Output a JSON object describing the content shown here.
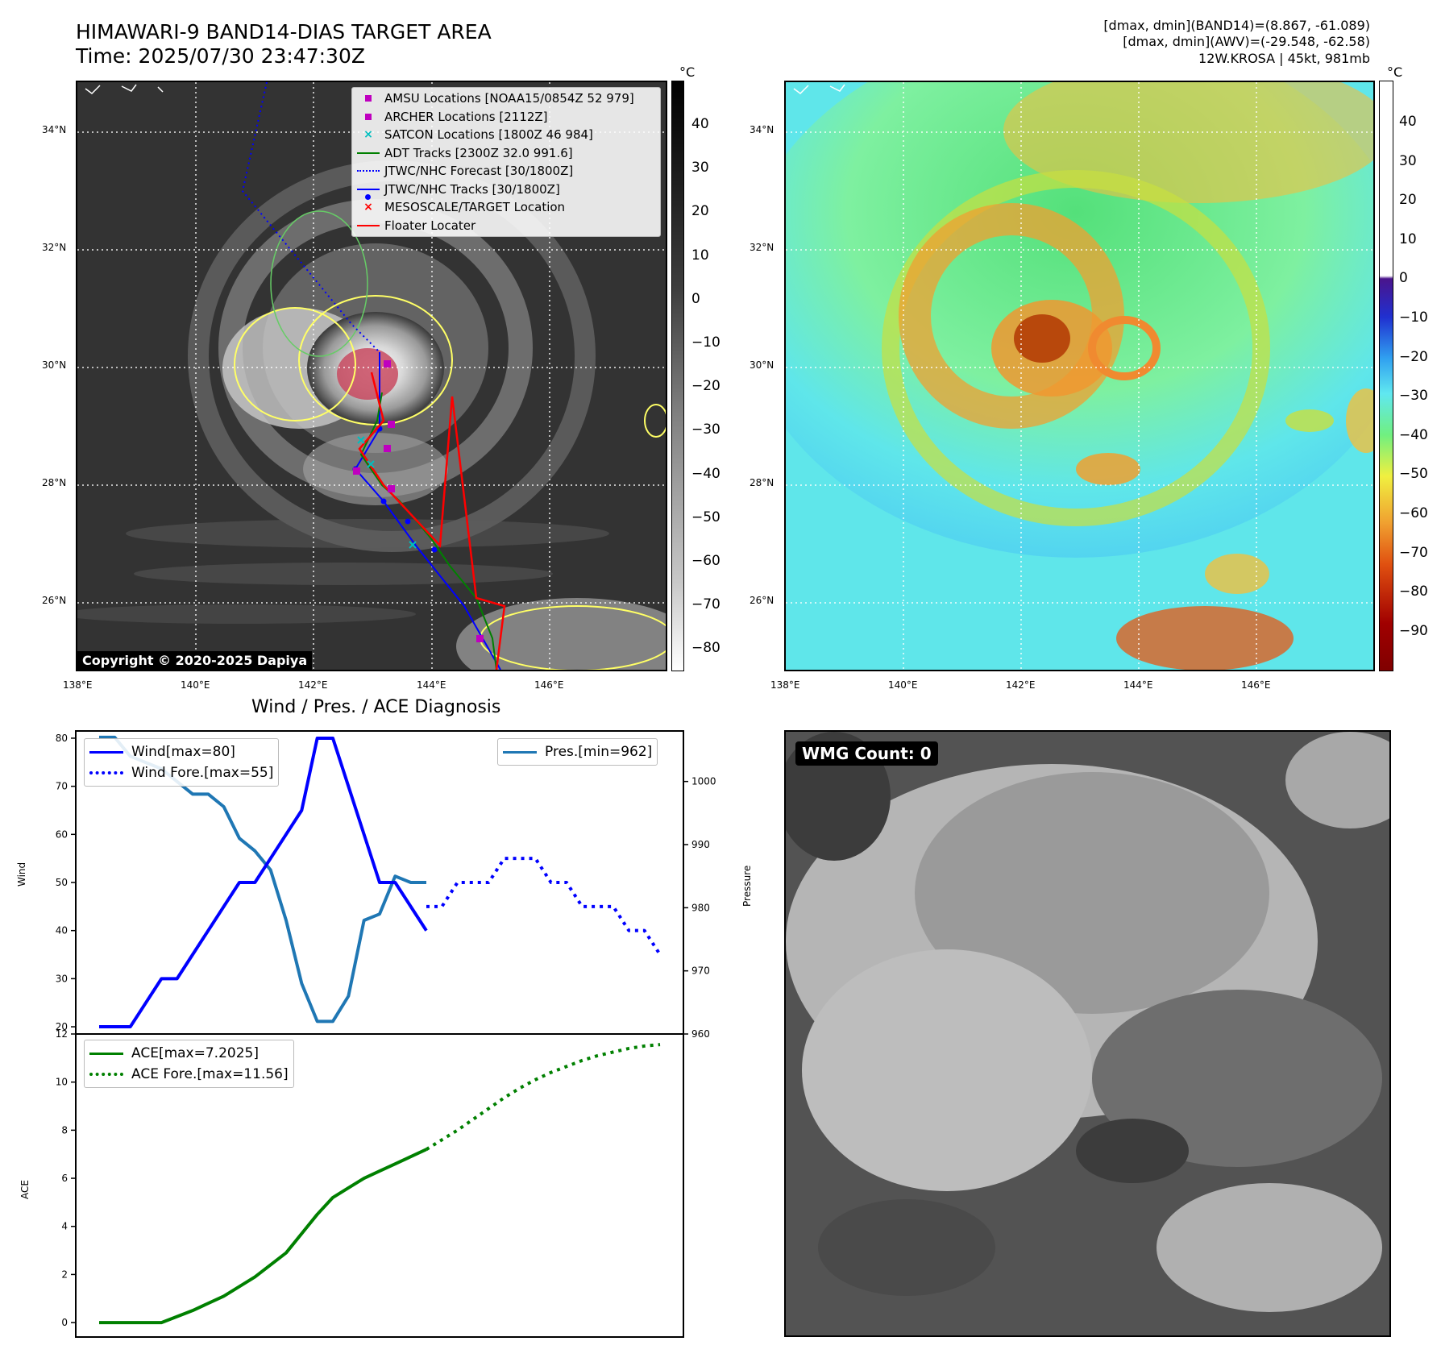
{
  "header": {
    "title_line1": "HIMAWARI-9 BAND14-DIAS TARGET AREA",
    "title_line2": "Time: 2025/07/30 23:47:30Z",
    "info_line1": "[dmax, dmin](BAND14)=(8.867, -61.089)",
    "info_line2": "[dmax, dmin](AWV)=(-29.548, -62.58)",
    "info_line3": "12W.KROSA | 45kt, 981mb"
  },
  "maps": {
    "lon_ticks": [
      "138°E",
      "140°E",
      "142°E",
      "144°E",
      "146°E"
    ],
    "lat_ticks": [
      "34°N",
      "32°N",
      "30°N",
      "28°N",
      "26°N"
    ],
    "colorbar_unit": "°C",
    "ir_colorbar_ticks": [
      "40",
      "30",
      "20",
      "10",
      "0",
      "−10",
      "−20",
      "−30",
      "−40",
      "−50",
      "−60",
      "−70",
      "−80"
    ],
    "awv_colorbar_ticks": [
      "40",
      "30",
      "20",
      "10",
      "0",
      "−10",
      "−20",
      "−30",
      "−40",
      "−50",
      "−60",
      "−70",
      "−80",
      "−90"
    ],
    "copyright": "Copyright © 2020-2025 Dapiya",
    "legend": [
      {
        "label": "AMSU Locations [NOAA15/0854Z 52 979]",
        "symbol": "square",
        "color": "#bf00bf"
      },
      {
        "label": "ARCHER Locations [2112Z]",
        "symbol": "square",
        "color": "#bf00bf"
      },
      {
        "label": "SATCON Locations [1800Z 46 984]",
        "symbol": "x",
        "color": "#00bfbf"
      },
      {
        "label": "ADT Tracks [2300Z 32.0 991.6]",
        "symbol": "line",
        "color": "#008000"
      },
      {
        "label": "JTWC/NHC Forecast [30/1800Z]",
        "symbol": "dotted",
        "color": "#0000ff"
      },
      {
        "label": "JTWC/NHC Tracks [30/1800Z]",
        "symbol": "line-dot",
        "color": "#0000ff"
      },
      {
        "label": "MESOSCALE/TARGET Location",
        "symbol": "x",
        "color": "#ff0000"
      },
      {
        "label": "Floater Locater",
        "symbol": "line",
        "color": "#ff0000"
      }
    ]
  },
  "diagnosis": {
    "title": "Wind / Pres. / ACE Diagnosis",
    "wind_ylabel": "Wind",
    "pres_ylabel": "Pressure",
    "ace_ylabel": "ACE",
    "wind_ticks": [
      "80",
      "70",
      "60",
      "50",
      "40",
      "30",
      "20"
    ],
    "pres_ticks": [
      "1000",
      "990",
      "980",
      "970",
      "960"
    ],
    "ace_ticks": [
      "12",
      "10",
      "8",
      "6",
      "4",
      "2",
      "0"
    ],
    "legend_wind": "Wind[max=80]",
    "legend_wind_fore": "Wind Fore.[max=55]",
    "legend_pres": "Pres.[min=962]",
    "legend_ace": "ACE[max=7.2025]",
    "legend_ace_fore": "ACE Fore.[max=11.56]"
  },
  "wmg": {
    "label": "WMG Count: 0"
  },
  "chart_data": [
    {
      "type": "line",
      "title": "Wind / Pres. / ACE Diagnosis",
      "ylabel": "Wind",
      "ylim": [
        18.5,
        81.5
      ],
      "series": [
        {
          "name": "Wind[max=80]",
          "color": "#0000ff",
          "style": "solid",
          "x": [
            0,
            1,
            2,
            3,
            4,
            5,
            6,
            7,
            8,
            9,
            10,
            11,
            12,
            13,
            14,
            15,
            16,
            17,
            18,
            19,
            20,
            21
          ],
          "values": [
            20,
            20,
            20,
            25,
            30,
            30,
            35,
            40,
            45,
            50,
            50,
            55,
            60,
            65,
            80,
            80,
            70,
            60,
            50,
            50,
            45,
            40
          ]
        },
        {
          "name": "Wind Fore.[max=55]",
          "color": "#0000ff",
          "style": "dotted",
          "x": [
            21,
            22,
            23,
            24,
            25,
            26,
            27,
            28,
            29,
            30,
            31,
            32,
            33,
            34,
            35,
            36
          ],
          "values": [
            45,
            45,
            50,
            50,
            50,
            55,
            55,
            55,
            50,
            50,
            45,
            45,
            45,
            40,
            40,
            35
          ]
        }
      ]
    },
    {
      "type": "line",
      "ylabel": "Pressure",
      "ylim": [
        960,
        1008
      ],
      "series": [
        {
          "name": "Pres.[min=962]",
          "color": "#1f77b4",
          "style": "solid",
          "x": [
            0,
            1,
            2,
            3,
            4,
            5,
            6,
            7,
            8,
            9,
            10,
            11,
            12,
            13,
            14,
            15,
            16,
            17,
            18,
            19,
            20,
            21
          ],
          "values": [
            1007,
            1007,
            1004,
            1003,
            1002,
            1000,
            998,
            998,
            996,
            991,
            989,
            986,
            978,
            968,
            962,
            962,
            966,
            978,
            979,
            985,
            984,
            984
          ]
        }
      ]
    },
    {
      "type": "line",
      "ylabel": "ACE",
      "ylim": [
        -0.6,
        12
      ],
      "series": [
        {
          "name": "ACE[max=7.2025]",
          "color": "#008000",
          "style": "solid",
          "x": [
            0,
            2,
            4,
            6,
            8,
            10,
            12,
            14,
            15,
            16,
            17,
            18,
            19,
            20,
            21
          ],
          "values": [
            0,
            0,
            0,
            0.5,
            1.1,
            1.9,
            2.9,
            4.5,
            5.2,
            5.6,
            6.0,
            6.3,
            6.6,
            6.9,
            7.2
          ]
        },
        {
          "name": "ACE Fore.[max=11.56]",
          "color": "#008000",
          "style": "dotted",
          "x": [
            21,
            22,
            23,
            24,
            25,
            26,
            27,
            28,
            29,
            30,
            31,
            32,
            33,
            34,
            35,
            36
          ],
          "values": [
            7.2,
            7.6,
            8.0,
            8.45,
            8.9,
            9.35,
            9.75,
            10.1,
            10.4,
            10.65,
            10.9,
            11.1,
            11.25,
            11.4,
            11.5,
            11.56
          ]
        }
      ]
    }
  ]
}
